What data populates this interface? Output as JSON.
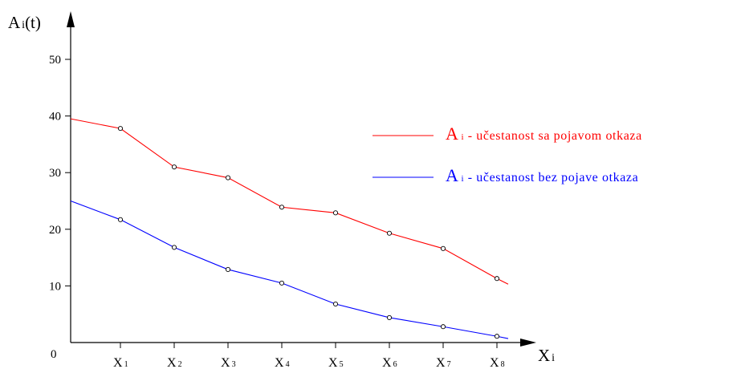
{
  "chart_data": {
    "type": "line",
    "y_axis_label": {
      "main": "A",
      "sub": "i",
      "suffix": "(t)"
    },
    "x_axis_label": {
      "main": "X",
      "sub": "i"
    },
    "origin_label": "0",
    "y_ticks": [
      "10",
      "20",
      "30",
      "40",
      "50"
    ],
    "ylim": [
      0,
      55
    ],
    "categories": [
      {
        "main": "X",
        "sub": "1"
      },
      {
        "main": "X",
        "sub": "2"
      },
      {
        "main": "X",
        "sub": "3"
      },
      {
        "main": "X",
        "sub": "4"
      },
      {
        "main": "X",
        "sub": "5"
      },
      {
        "main": "X",
        "sub": "6"
      },
      {
        "main": "X",
        "sub": "7"
      },
      {
        "main": "X",
        "sub": "8"
      }
    ],
    "grid": false,
    "legend_position": "right",
    "series": [
      {
        "legend": {
          "main": "A",
          "sub": "i",
          "text": " - učestanost sa pojavom otkaza"
        },
        "color": "#ff0000",
        "start_value": 39.5,
        "values": [
          37.8,
          31.0,
          29.1,
          23.9,
          22.9,
          19.3,
          16.6,
          11.3
        ],
        "end_value": 10.3
      },
      {
        "legend": {
          "main": "A",
          "sub": "i",
          "text": " - učestanost bez pojave otkaza"
        },
        "color": "#0000ff",
        "start_value": 25.0,
        "values": [
          21.7,
          16.8,
          12.9,
          10.5,
          6.8,
          4.4,
          2.8,
          1.1
        ],
        "end_value": 0.7
      }
    ]
  }
}
